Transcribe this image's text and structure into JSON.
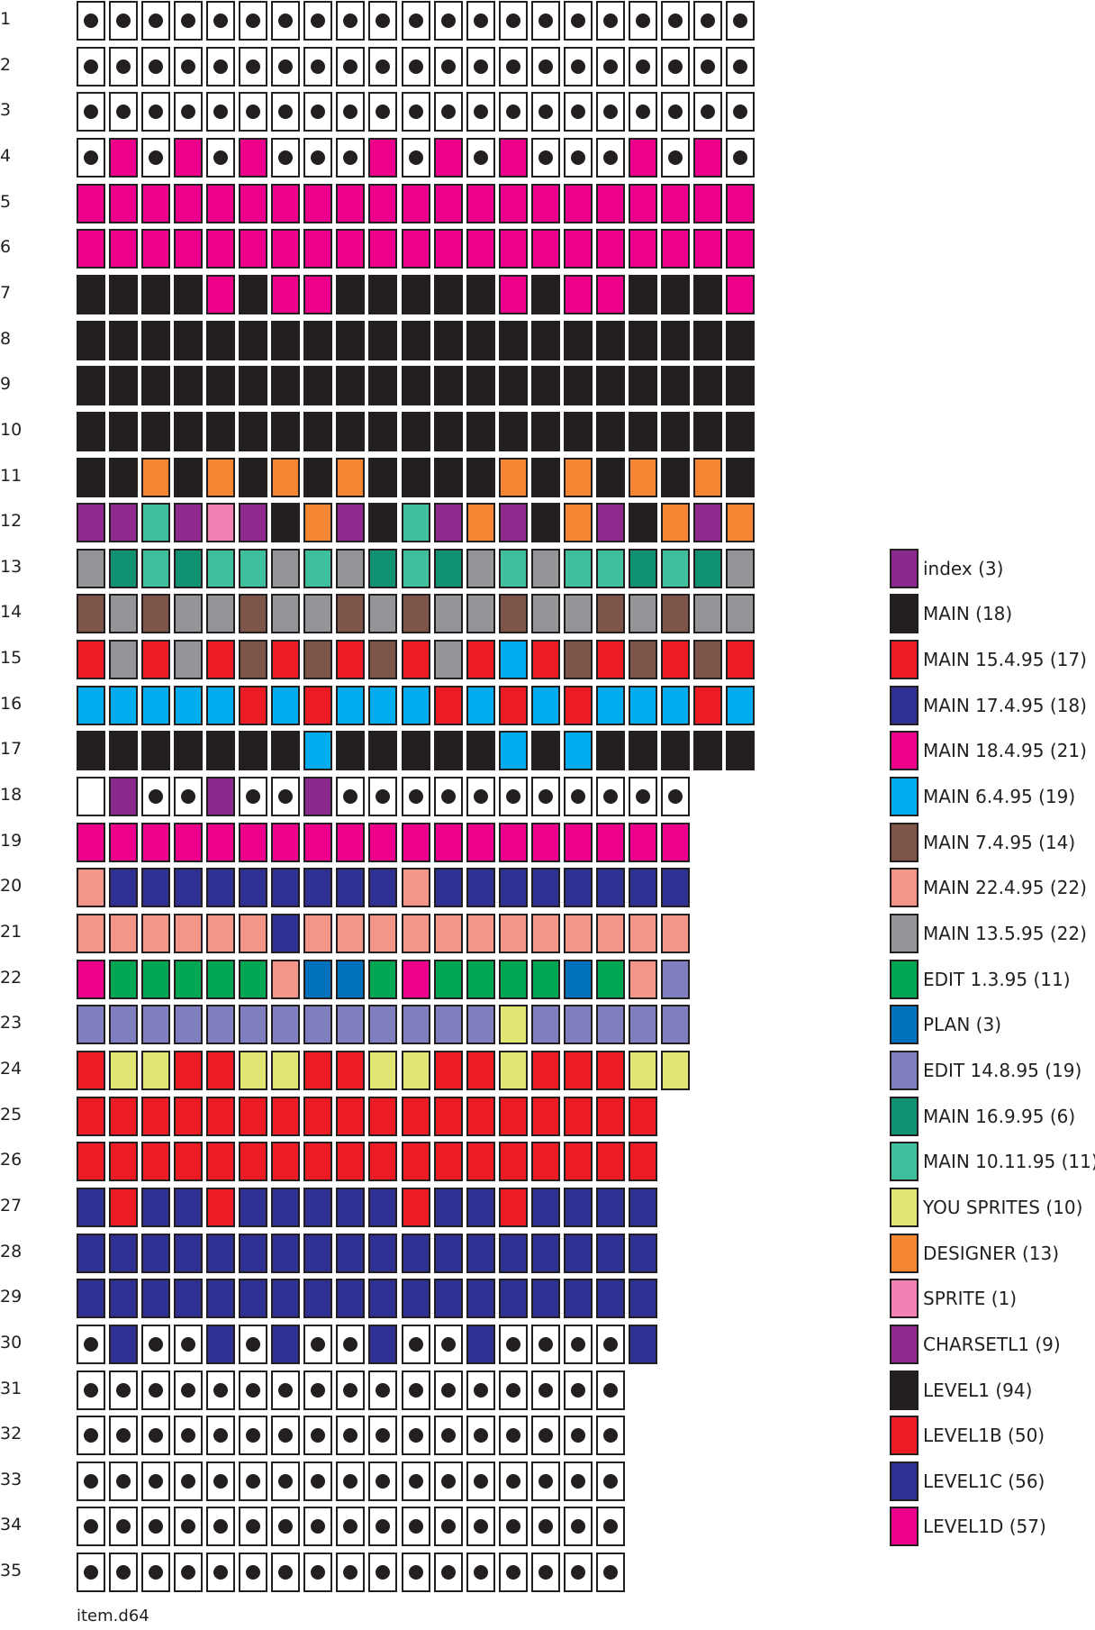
{
  "legend": [
    {
      "key": "i",
      "label": "index (3)",
      "color": "#8b2a8e"
    },
    {
      "key": "M",
      "label": "MAIN (18)",
      "color": "#231f20"
    },
    {
      "key": "a",
      "label": "MAIN 15.4.95 (17)",
      "color": "#ed1c24"
    },
    {
      "key": "b",
      "label": "MAIN 17.4.95 (18)",
      "color": "#2e3192"
    },
    {
      "key": "c",
      "label": "MAIN 18.4.95 (21)",
      "color": "#ec008c"
    },
    {
      "key": "d",
      "label": "MAIN 6.4.95 (19)",
      "color": "#00aeef"
    },
    {
      "key": "e",
      "label": "MAIN 7.4.95 (14)",
      "color": "#7e5549"
    },
    {
      "key": "f",
      "label": "MAIN 22.4.95 (22)",
      "color": "#f4958a"
    },
    {
      "key": "g",
      "label": "MAIN 13.5.95 (22)",
      "color": "#939598"
    },
    {
      "key": "h",
      "label": "EDIT 1.3.95 (11)",
      "color": "#00a651"
    },
    {
      "key": "p",
      "label": "PLAN (3)",
      "color": "#0072bc"
    },
    {
      "key": "l",
      "label": "EDIT 14.8.95 (19)",
      "color": "#8080c0"
    },
    {
      "key": "k",
      "label": "MAIN 16.9.95 (6)",
      "color": "#0f9172"
    },
    {
      "key": "t",
      "label": "MAIN 10.11.95 (11)",
      "color": "#40bf9d"
    },
    {
      "key": "y",
      "label": "YOU SPRITES (10)",
      "color": "#e0e574"
    },
    {
      "key": "o",
      "label": "DESIGNER (13)",
      "color": "#f58634"
    },
    {
      "key": "s",
      "label": "SPRITE (1)",
      "color": "#f282b4"
    },
    {
      "key": "C",
      "label": "CHARSETL1 (9)",
      "color": "#902a8e"
    },
    {
      "key": "L",
      "label": "LEVEL1 (94)",
      "color": "#231f20"
    },
    {
      "key": "R",
      "label": "LEVEL1B (50)",
      "color": "#ed1c24"
    },
    {
      "key": "N",
      "label": "LEVEL1C (56)",
      "color": "#2e3192"
    },
    {
      "key": "P",
      "label": "LEVEL1D (57)",
      "color": "#ec008c"
    }
  ],
  "cell_codes": {
    ".": "free sector",
    "w": "empty sector"
  },
  "tracks": [
    {
      "n": "1",
      "s": "....................."
    },
    {
      "n": "2",
      "s": "....................."
    },
    {
      "n": "3",
      "s": "....................."
    },
    {
      "n": "4",
      "s": ".P.P.P...P.P.P...P.P."
    },
    {
      "n": "5",
      "s": "PPPPPPPPPPPPPPPPPPPPP"
    },
    {
      "n": "6",
      "s": "PPPPPPPPPPPPPPPPPPPPP"
    },
    {
      "n": "7",
      "s": "LLLLPLPPLLLLLPLPPLLLP"
    },
    {
      "n": "8",
      "s": "LLLLLLLLLLLLLLLLLLLLL"
    },
    {
      "n": "9",
      "s": "LLLLLLLLLLLLLLLLLLLLL"
    },
    {
      "n": "10",
      "s": "LLLLLLLLLLLLLLLLLLLLL"
    },
    {
      "n": "11",
      "s": "LLoLoLoLoLLLLoLoLoLoL"
    },
    {
      "n": "12",
      "s": "CCtCsCLoCLtCoCLoCLoCo"
    },
    {
      "n": "13",
      "s": "gktkttgtgktkgtgttktkg"
    },
    {
      "n": "14",
      "s": "egeggeggegeggeggegegg"
    },
    {
      "n": "15",
      "s": "agagaeaeaeagadaeaeaea"
    },
    {
      "n": "16",
      "s": "dddddadadddadadadddad"
    },
    {
      "n": "17",
      "s": "MMMMMMMdMMMMMdMdMMMMM"
    },
    {
      "n": "18",
      "s": "wi..i..i..........."
    },
    {
      "n": "19",
      "s": "ccccccccccccccccccc"
    },
    {
      "n": "20",
      "s": "fbbbbbbbbbfbbbbbbbb"
    },
    {
      "n": "21",
      "s": "ffffffbffffffffffff"
    },
    {
      "n": "22",
      "s": "chhhhhfpphchhhhphfl"
    },
    {
      "n": "23",
      "s": "lllllllllllllylllll"
    },
    {
      "n": "24",
      "s": "RyyRRyyRRyyRRyRRRyy"
    },
    {
      "n": "25",
      "s": "RRRRRRRRRRRRRRRRRR"
    },
    {
      "n": "26",
      "s": "RRRRRRRRRRRRRRRRRR"
    },
    {
      "n": "27",
      "s": "NRNNRNNNNNRNNRNNNN"
    },
    {
      "n": "28",
      "s": "NNNNNNNNNNNNNNNNNN"
    },
    {
      "n": "29",
      "s": "NNNNNNNNNNNNNNNNNN"
    },
    {
      "n": "30",
      "s": ".N..N.N..N..N....N"
    },
    {
      "n": "31",
      "s": "................."
    },
    {
      "n": "32",
      "s": "................."
    },
    {
      "n": "33",
      "s": "................."
    },
    {
      "n": "34",
      "s": "................."
    },
    {
      "n": "35",
      "s": "................."
    }
  ],
  "footer": "item.d64"
}
